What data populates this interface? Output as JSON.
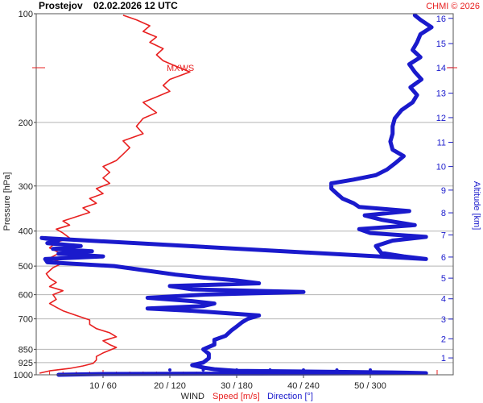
{
  "chart_data": {
    "type": "line",
    "title": "Prostejov    02.02.2026 12 UTC",
    "credit": "CHMI © 2026",
    "ylabel": "Pressure [hPa]",
    "ylabel_right": "Altitude [km]",
    "xlabel": {
      "wind": "WIND",
      "speed": "Speed [m/s]",
      "direction": "Direction [°]"
    },
    "pressure_scale": "log",
    "ylim": [
      1000,
      100
    ],
    "xlim_speed": [
      0,
      35
    ],
    "xlim_direction": [
      0,
      360
    ],
    "grid": true,
    "pressure_ticks": [
      {
        "value": 100,
        "label": "100"
      },
      {
        "value": 200,
        "label": "200"
      },
      {
        "value": 300,
        "label": "300"
      },
      {
        "value": 400,
        "label": "400"
      },
      {
        "value": 500,
        "label": "500"
      },
      {
        "value": 600,
        "label": "600"
      },
      {
        "value": 700,
        "label": "700"
      },
      {
        "value": 850,
        "label": "850"
      },
      {
        "value": 925,
        "label": "925"
      },
      {
        "value": 1000,
        "label": "1000"
      }
    ],
    "x_ticks": [
      {
        "speed": 10,
        "direction": 60,
        "label": "10 / 60"
      },
      {
        "speed": 20,
        "direction": 120,
        "label": "20 / 120"
      },
      {
        "speed": 30,
        "direction": 180,
        "label": "30 / 180"
      },
      {
        "speed": 40,
        "direction": 240,
        "label": "40 / 240"
      },
      {
        "speed": 50,
        "direction": 300,
        "label": "50 / 300"
      }
    ],
    "altitude_ticks": [
      {
        "km": 1,
        "pressure": 898,
        "label": "1"
      },
      {
        "km": 2,
        "pressure": 795,
        "label": "2"
      },
      {
        "km": 3,
        "pressure": 701,
        "label": "3"
      },
      {
        "km": 4,
        "pressure": 616,
        "label": "4"
      },
      {
        "km": 5,
        "pressure": 540,
        "label": "5"
      },
      {
        "km": 6,
        "pressure": 472,
        "label": "6"
      },
      {
        "km": 7,
        "pressure": 410,
        "label": "7"
      },
      {
        "km": 8,
        "pressure": 356,
        "label": "8"
      },
      {
        "km": 9,
        "pressure": 308,
        "label": "9"
      },
      {
        "km": 10,
        "pressure": 265,
        "label": "10"
      },
      {
        "km": 11,
        "pressure": 227,
        "label": "11"
      },
      {
        "km": 12,
        "pressure": 194,
        "label": "12"
      },
      {
        "km": 13,
        "pressure": 166,
        "label": "13"
      },
      {
        "km": 14,
        "pressure": 141,
        "label": "14"
      },
      {
        "km": 15,
        "pressure": 121,
        "label": "15"
      },
      {
        "km": 16,
        "pressure": 103,
        "label": "16"
      }
    ],
    "max_wind_label": "MXWS",
    "max_wind_pressure": 145,
    "series": [
      {
        "name": "Speed [m/s]",
        "color": "#e82020",
        "points": [
          {
            "p": 990,
            "v": 0.5
          },
          {
            "p": 975,
            "v": 2
          },
          {
            "p": 960,
            "v": 5
          },
          {
            "p": 945,
            "v": 7
          },
          {
            "p": 930,
            "v": 8.5
          },
          {
            "p": 910,
            "v": 9
          },
          {
            "p": 890,
            "v": 9
          },
          {
            "p": 870,
            "v": 10
          },
          {
            "p": 855,
            "v": 11
          },
          {
            "p": 840,
            "v": 12
          },
          {
            "p": 825,
            "v": 11
          },
          {
            "p": 805,
            "v": 10
          },
          {
            "p": 785,
            "v": 12
          },
          {
            "p": 765,
            "v": 11
          },
          {
            "p": 745,
            "v": 9
          },
          {
            "p": 725,
            "v": 8
          },
          {
            "p": 705,
            "v": 8
          },
          {
            "p": 685,
            "v": 6
          },
          {
            "p": 665,
            "v": 4
          },
          {
            "p": 650,
            "v": 3
          },
          {
            "p": 635,
            "v": 2
          },
          {
            "p": 618,
            "v": 3
          },
          {
            "p": 600,
            "v": 2.5
          },
          {
            "p": 585,
            "v": 4
          },
          {
            "p": 570,
            "v": 2
          },
          {
            "p": 555,
            "v": 3
          },
          {
            "p": 540,
            "v": 2
          },
          {
            "p": 525,
            "v": 1.5
          },
          {
            "p": 505,
            "v": 2.5
          },
          {
            "p": 490,
            "v": 4
          },
          {
            "p": 475,
            "v": 2
          },
          {
            "p": 460,
            "v": 3.5
          },
          {
            "p": 445,
            "v": 2
          },
          {
            "p": 430,
            "v": 3
          },
          {
            "p": 418,
            "v": 5
          },
          {
            "p": 405,
            "v": 4
          },
          {
            "p": 395,
            "v": 3
          },
          {
            "p": 385,
            "v": 5
          },
          {
            "p": 375,
            "v": 4
          },
          {
            "p": 365,
            "v": 6
          },
          {
            "p": 355,
            "v": 8
          },
          {
            "p": 345,
            "v": 7
          },
          {
            "p": 335,
            "v": 9
          },
          {
            "p": 325,
            "v": 8
          },
          {
            "p": 315,
            "v": 10
          },
          {
            "p": 305,
            "v": 9
          },
          {
            "p": 295,
            "v": 11
          },
          {
            "p": 285,
            "v": 10
          },
          {
            "p": 275,
            "v": 11
          },
          {
            "p": 265,
            "v": 10
          },
          {
            "p": 255,
            "v": 12
          },
          {
            "p": 245,
            "v": 13
          },
          {
            "p": 235,
            "v": 14
          },
          {
            "p": 225,
            "v": 13
          },
          {
            "p": 215,
            "v": 16
          },
          {
            "p": 205,
            "v": 15
          },
          {
            "p": 195,
            "v": 16
          },
          {
            "p": 188,
            "v": 18
          },
          {
            "p": 182,
            "v": 17
          },
          {
            "p": 176,
            "v": 16
          },
          {
            "p": 170,
            "v": 18
          },
          {
            "p": 164,
            "v": 20
          },
          {
            "p": 158,
            "v": 19
          },
          {
            "p": 152,
            "v": 20
          },
          {
            "p": 145,
            "v": 23
          },
          {
            "p": 140,
            "v": 21
          },
          {
            "p": 135,
            "v": 19
          },
          {
            "p": 130,
            "v": 18
          },
          {
            "p": 125,
            "v": 19
          },
          {
            "p": 120,
            "v": 17
          },
          {
            "p": 116,
            "v": 18
          },
          {
            "p": 112,
            "v": 16
          },
          {
            "p": 108,
            "v": 17
          },
          {
            "p": 104,
            "v": 15
          },
          {
            "p": 101,
            "v": 13
          }
        ]
      },
      {
        "name": "Direction [°]",
        "color": "#1a1acc",
        "points": [
          {
            "p": 1000,
            "d": 20
          },
          {
            "p": 995,
            "d": 60
          },
          {
            "p": 990,
            "d": 350
          },
          {
            "p": 985,
            "d": 320
          },
          {
            "p": 975,
            "d": 180
          },
          {
            "p": 965,
            "d": 160
          },
          {
            "p": 955,
            "d": 150
          },
          {
            "p": 940,
            "d": 140
          },
          {
            "p": 925,
            "d": 150
          },
          {
            "p": 900,
            "d": 155
          },
          {
            "p": 875,
            "d": 155
          },
          {
            "p": 850,
            "d": 150
          },
          {
            "p": 825,
            "d": 160
          },
          {
            "p": 800,
            "d": 160
          },
          {
            "p": 780,
            "d": 170
          },
          {
            "p": 755,
            "d": 175
          },
          {
            "p": 735,
            "d": 180
          },
          {
            "p": 715,
            "d": 185
          },
          {
            "p": 700,
            "d": 190
          },
          {
            "p": 685,
            "d": 200
          },
          {
            "p": 675,
            "d": 170
          },
          {
            "p": 665,
            "d": 140
          },
          {
            "p": 655,
            "d": 100
          },
          {
            "p": 645,
            "d": 150
          },
          {
            "p": 635,
            "d": 160
          },
          {
            "p": 625,
            "d": 140
          },
          {
            "p": 612,
            "d": 100
          },
          {
            "p": 600,
            "d": 150
          },
          {
            "p": 590,
            "d": 240
          },
          {
            "p": 580,
            "d": 140
          },
          {
            "p": 568,
            "d": 120
          },
          {
            "p": 558,
            "d": 200
          },
          {
            "p": 548,
            "d": 180
          },
          {
            "p": 538,
            "d": 150
          },
          {
            "p": 528,
            "d": 125
          },
          {
            "p": 515,
            "d": 100
          },
          {
            "p": 500,
            "d": 70
          },
          {
            "p": 488,
            "d": 10
          },
          {
            "p": 478,
            "d": 8
          },
          {
            "p": 470,
            "d": 60
          },
          {
            "p": 462,
            "d": 20
          },
          {
            "p": 455,
            "d": 50
          },
          {
            "p": 448,
            "d": 15
          },
          {
            "p": 440,
            "d": 40
          },
          {
            "p": 432,
            "d": 10
          },
          {
            "p": 424,
            "d": 20
          },
          {
            "p": 418,
            "d": 5
          },
          {
            "p": 478,
            "d": 350
          },
          {
            "p": 470,
            "d": 330
          },
          {
            "p": 460,
            "d": 310
          },
          {
            "p": 440,
            "d": 305
          },
          {
            "p": 425,
            "d": 320
          },
          {
            "p": 415,
            "d": 350
          },
          {
            "p": 405,
            "d": 300
          },
          {
            "p": 395,
            "d": 290
          },
          {
            "p": 385,
            "d": 340
          },
          {
            "p": 372,
            "d": 310
          },
          {
            "p": 362,
            "d": 295
          },
          {
            "p": 352,
            "d": 335
          },
          {
            "p": 343,
            "d": 290
          },
          {
            "p": 335,
            "d": 285
          },
          {
            "p": 325,
            "d": 275
          },
          {
            "p": 315,
            "d": 270
          },
          {
            "p": 305,
            "d": 265
          },
          {
            "p": 295,
            "d": 265
          },
          {
            "p": 288,
            "d": 285
          },
          {
            "p": 280,
            "d": 305
          },
          {
            "p": 270,
            "d": 315
          },
          {
            "p": 260,
            "d": 322
          },
          {
            "p": 248,
            "d": 330
          },
          {
            "p": 238,
            "d": 320
          },
          {
            "p": 226,
            "d": 318
          },
          {
            "p": 215,
            "d": 320
          },
          {
            "p": 205,
            "d": 320
          },
          {
            "p": 195,
            "d": 322
          },
          {
            "p": 185,
            "d": 328
          },
          {
            "p": 176,
            "d": 338
          },
          {
            "p": 168,
            "d": 342
          },
          {
            "p": 160,
            "d": 336
          },
          {
            "p": 152,
            "d": 346
          },
          {
            "p": 145,
            "d": 340
          },
          {
            "p": 138,
            "d": 335
          },
          {
            "p": 132,
            "d": 345
          },
          {
            "p": 126,
            "d": 338
          },
          {
            "p": 120,
            "d": 342
          },
          {
            "p": 114,
            "d": 345
          },
          {
            "p": 109,
            "d": 355
          },
          {
            "p": 104,
            "d": 345
          },
          {
            "p": 101,
            "d": 340
          }
        ]
      }
    ],
    "direction_markers": [
      {
        "p": 985,
        "d": 120
      },
      {
        "p": 985,
        "d": 150
      },
      {
        "p": 985,
        "d": 180
      },
      {
        "p": 985,
        "d": 210
      },
      {
        "p": 985,
        "d": 240
      },
      {
        "p": 985,
        "d": 270
      },
      {
        "p": 985,
        "d": 300
      }
    ]
  }
}
